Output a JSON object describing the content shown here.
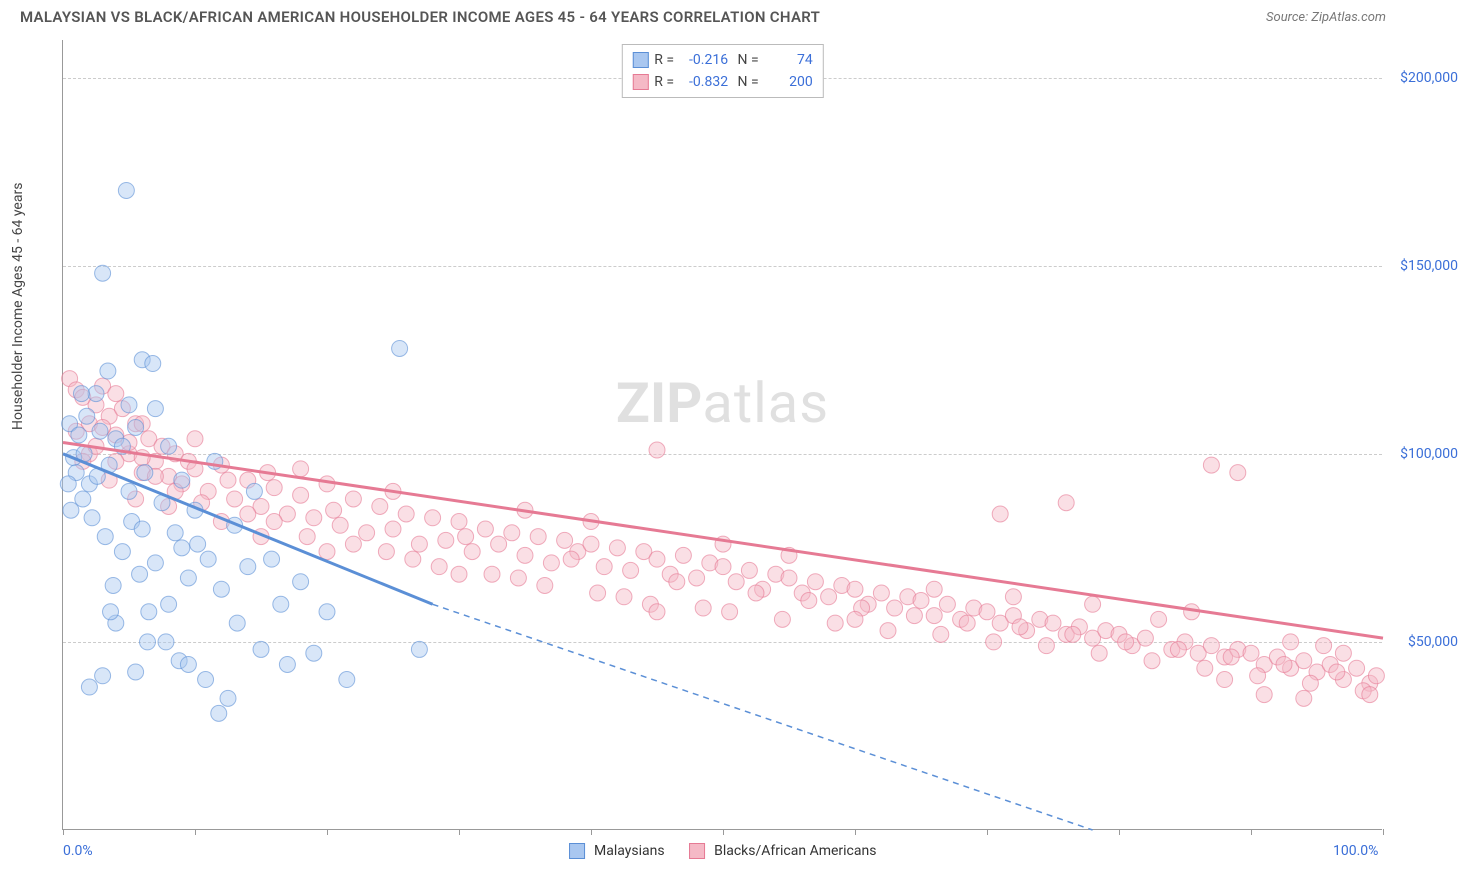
{
  "title": "MALAYSIAN VS BLACK/AFRICAN AMERICAN HOUSEHOLDER INCOME AGES 45 - 64 YEARS CORRELATION CHART",
  "source_label": "Source: ZipAtlas.com",
  "watermark": "ZIPatlas",
  "chart": {
    "type": "scatter-with-regression",
    "xlim": [
      0,
      100
    ],
    "ylim": [
      0,
      210000
    ],
    "ylabel": "Householder Income Ages 45 - 64 years",
    "x_tick_positions": [
      0,
      10,
      20,
      30,
      40,
      50,
      60,
      70,
      80,
      90,
      100
    ],
    "x_axis_labels": [
      {
        "pos": 0,
        "text": "0.0%"
      },
      {
        "pos": 100,
        "text": "100.0%"
      }
    ],
    "y_gridlines": [
      50000,
      100000,
      150000,
      200000
    ],
    "y_tick_labels": [
      {
        "val": 50000,
        "text": "$50,000"
      },
      {
        "val": 100000,
        "text": "$100,000"
      },
      {
        "val": 150000,
        "text": "$150,000"
      },
      {
        "val": 200000,
        "text": "$200,000"
      }
    ],
    "marker_radius": 8,
    "marker_opacity": 0.45,
    "grid_color": "#cccccc",
    "axis_color": "#999999",
    "background_color": "#ffffff",
    "label_fontsize": 14,
    "tick_color": "#3b6fd8"
  },
  "series": [
    {
      "name": "Malaysians",
      "color_fill": "#a9c7f0",
      "color_stroke": "#5b8fd6",
      "R": "-0.216",
      "N": "74",
      "regression": {
        "x1": 0,
        "y1": 100000,
        "x2": 28,
        "y2": 60000,
        "solid": true
      },
      "regression_ext": {
        "x1": 28,
        "y1": 60000,
        "x2": 78,
        "y2": 0
      },
      "points": [
        [
          0.5,
          108000
        ],
        [
          0.8,
          99000
        ],
        [
          1.0,
          95000
        ],
        [
          1.2,
          105000
        ],
        [
          1.5,
          88000
        ],
        [
          1.8,
          110000
        ],
        [
          2.0,
          92000
        ],
        [
          2.2,
          83000
        ],
        [
          2.5,
          116000
        ],
        [
          2.8,
          106000
        ],
        [
          3.0,
          148000
        ],
        [
          3.2,
          78000
        ],
        [
          3.5,
          97000
        ],
        [
          3.8,
          65000
        ],
        [
          4.0,
          104000
        ],
        [
          4.5,
          74000
        ],
        [
          4.8,
          170000
        ],
        [
          5.0,
          90000
        ],
        [
          5.2,
          82000
        ],
        [
          5.5,
          42000
        ],
        [
          5.8,
          68000
        ],
        [
          6.0,
          125000
        ],
        [
          6.2,
          95000
        ],
        [
          6.5,
          58000
        ],
        [
          6.8,
          124000
        ],
        [
          7.0,
          71000
        ],
        [
          7.5,
          87000
        ],
        [
          7.8,
          50000
        ],
        [
          8.0,
          102000
        ],
        [
          8.5,
          79000
        ],
        [
          8.8,
          45000
        ],
        [
          9.0,
          93000
        ],
        [
          9.5,
          67000
        ],
        [
          10.0,
          85000
        ],
        [
          10.2,
          76000
        ],
        [
          10.8,
          40000
        ],
        [
          11.0,
          72000
        ],
        [
          11.5,
          98000
        ],
        [
          12.0,
          64000
        ],
        [
          12.5,
          35000
        ],
        [
          13.0,
          81000
        ],
        [
          13.2,
          55000
        ],
        [
          14.0,
          70000
        ],
        [
          14.5,
          90000
        ],
        [
          15.0,
          48000
        ],
        [
          15.8,
          72000
        ],
        [
          16.5,
          60000
        ],
        [
          17.0,
          44000
        ],
        [
          18.0,
          66000
        ],
        [
          19.0,
          47000
        ],
        [
          20.0,
          58000
        ],
        [
          21.5,
          40000
        ],
        [
          25.5,
          128000
        ],
        [
          27.0,
          48000
        ],
        [
          2.0,
          38000
        ],
        [
          3.0,
          41000
        ],
        [
          4.0,
          55000
        ],
        [
          4.5,
          102000
        ],
        [
          5.0,
          113000
        ],
        [
          5.5,
          107000
        ],
        [
          6.0,
          80000
        ],
        [
          7.0,
          112000
        ],
        [
          8.0,
          60000
        ],
        [
          9.0,
          75000
        ],
        [
          3.4,
          122000
        ],
        [
          2.6,
          94000
        ],
        [
          1.4,
          116000
        ],
        [
          1.6,
          100000
        ],
        [
          0.4,
          92000
        ],
        [
          0.6,
          85000
        ],
        [
          11.8,
          31000
        ],
        [
          9.5,
          44000
        ],
        [
          3.6,
          58000
        ],
        [
          6.4,
          50000
        ]
      ]
    },
    {
      "name": "Blacks/African Americans",
      "color_fill": "#f5b9c6",
      "color_stroke": "#e67a94",
      "R": "-0.832",
      "N": "200",
      "regression": {
        "x1": 0,
        "y1": 103000,
        "x2": 100,
        "y2": 51000,
        "solid": true
      },
      "points": [
        [
          0.5,
          120000
        ],
        [
          1.0,
          117000
        ],
        [
          1.5,
          115000
        ],
        [
          2.0,
          108000
        ],
        [
          2.5,
          113000
        ],
        [
          3.0,
          118000
        ],
        [
          3.5,
          110000
        ],
        [
          4.0,
          105000
        ],
        [
          4.5,
          112000
        ],
        [
          5.0,
          100000
        ],
        [
          5.5,
          108000
        ],
        [
          6.0,
          95000
        ],
        [
          6.5,
          104000
        ],
        [
          7.0,
          98000
        ],
        [
          7.5,
          102000
        ],
        [
          8.0,
          94000
        ],
        [
          8.5,
          100000
        ],
        [
          9.0,
          92000
        ],
        [
          9.5,
          98000
        ],
        [
          10.0,
          96000
        ],
        [
          11.0,
          90000
        ],
        [
          12.0,
          97000
        ],
        [
          13.0,
          88000
        ],
        [
          14.0,
          93000
        ],
        [
          15.0,
          86000
        ],
        [
          15.5,
          95000
        ],
        [
          16.0,
          91000
        ],
        [
          17.0,
          84000
        ],
        [
          18.0,
          89000
        ],
        [
          19.0,
          83000
        ],
        [
          20.0,
          92000
        ],
        [
          21.0,
          81000
        ],
        [
          22.0,
          88000
        ],
        [
          23.0,
          79000
        ],
        [
          24.0,
          86000
        ],
        [
          25.0,
          80000
        ],
        [
          26.0,
          84000
        ],
        [
          27.0,
          76000
        ],
        [
          28.0,
          83000
        ],
        [
          29.0,
          77000
        ],
        [
          30.0,
          82000
        ],
        [
          31.0,
          74000
        ],
        [
          32.0,
          80000
        ],
        [
          33.0,
          76000
        ],
        [
          34.0,
          79000
        ],
        [
          35.0,
          73000
        ],
        [
          36.0,
          78000
        ],
        [
          37.0,
          71000
        ],
        [
          38.0,
          77000
        ],
        [
          39.0,
          74000
        ],
        [
          40.0,
          76000
        ],
        [
          41.0,
          70000
        ],
        [
          42.0,
          75000
        ],
        [
          43.0,
          69000
        ],
        [
          44.0,
          74000
        ],
        [
          45.0,
          72000
        ],
        [
          46.0,
          68000
        ],
        [
          47.0,
          73000
        ],
        [
          48.0,
          67000
        ],
        [
          49.0,
          71000
        ],
        [
          45.0,
          101000
        ],
        [
          50.0,
          70000
        ],
        [
          51.0,
          66000
        ],
        [
          52.0,
          69000
        ],
        [
          53.0,
          64000
        ],
        [
          54.0,
          68000
        ],
        [
          55.0,
          67000
        ],
        [
          56.0,
          63000
        ],
        [
          57.0,
          66000
        ],
        [
          58.0,
          62000
        ],
        [
          59.0,
          65000
        ],
        [
          60.0,
          64000
        ],
        [
          61.0,
          60000
        ],
        [
          62.0,
          63000
        ],
        [
          63.0,
          59000
        ],
        [
          64.0,
          62000
        ],
        [
          65.0,
          61000
        ],
        [
          66.0,
          57000
        ],
        [
          67.0,
          60000
        ],
        [
          68.0,
          56000
        ],
        [
          69.0,
          59000
        ],
        [
          70.0,
          58000
        ],
        [
          71.0,
          55000
        ],
        [
          72.0,
          57000
        ],
        [
          73.0,
          53000
        ],
        [
          74.0,
          56000
        ],
        [
          75.0,
          55000
        ],
        [
          76.0,
          52000
        ],
        [
          77.0,
          54000
        ],
        [
          78.0,
          51000
        ],
        [
          79.0,
          53000
        ],
        [
          80.0,
          52000
        ],
        [
          81.0,
          49000
        ],
        [
          82.0,
          51000
        ],
        [
          83.0,
          56000
        ],
        [
          84.0,
          48000
        ],
        [
          85.0,
          50000
        ],
        [
          86.0,
          47000
        ],
        [
          87.0,
          49000
        ],
        [
          88.0,
          46000
        ],
        [
          89.0,
          48000
        ],
        [
          87.0,
          97000
        ],
        [
          90.0,
          47000
        ],
        [
          91.0,
          44000
        ],
        [
          92.0,
          46000
        ],
        [
          93.0,
          43000
        ],
        [
          94.0,
          45000
        ],
        [
          89.0,
          95000
        ],
        [
          95.0,
          42000
        ],
        [
          96.0,
          44000
        ],
        [
          97.0,
          40000
        ],
        [
          98.0,
          43000
        ],
        [
          99.0,
          39000
        ],
        [
          99.5,
          41000
        ],
        [
          2.0,
          100000
        ],
        [
          3.0,
          107000
        ],
        [
          4.0,
          98000
        ],
        [
          5.0,
          103000
        ],
        [
          6.0,
          99000
        ],
        [
          7.0,
          94000
        ],
        [
          8.5,
          90000
        ],
        [
          10.5,
          87000
        ],
        [
          12.5,
          93000
        ],
        [
          14.0,
          84000
        ],
        [
          16.0,
          82000
        ],
        [
          18.5,
          78000
        ],
        [
          20.5,
          85000
        ],
        [
          22.0,
          76000
        ],
        [
          24.5,
          74000
        ],
        [
          26.5,
          72000
        ],
        [
          28.5,
          70000
        ],
        [
          30.5,
          78000
        ],
        [
          32.5,
          68000
        ],
        [
          34.5,
          67000
        ],
        [
          36.5,
          65000
        ],
        [
          38.5,
          72000
        ],
        [
          40.5,
          63000
        ],
        [
          42.5,
          62000
        ],
        [
          44.5,
          60000
        ],
        [
          46.5,
          66000
        ],
        [
          48.5,
          59000
        ],
        [
          50.5,
          58000
        ],
        [
          52.5,
          63000
        ],
        [
          54.5,
          56000
        ],
        [
          56.5,
          61000
        ],
        [
          58.5,
          55000
        ],
        [
          60.5,
          59000
        ],
        [
          62.5,
          53000
        ],
        [
          64.5,
          57000
        ],
        [
          66.5,
          52000
        ],
        [
          68.5,
          55000
        ],
        [
          70.5,
          50000
        ],
        [
          72.5,
          54000
        ],
        [
          74.5,
          49000
        ],
        [
          76.5,
          52000
        ],
        [
          78.5,
          47000
        ],
        [
          80.5,
          50000
        ],
        [
          82.5,
          45000
        ],
        [
          84.5,
          48000
        ],
        [
          86.5,
          43000
        ],
        [
          88.5,
          46000
        ],
        [
          90.5,
          41000
        ],
        [
          92.5,
          44000
        ],
        [
          94.5,
          39000
        ],
        [
          96.5,
          42000
        ],
        [
          98.5,
          37000
        ],
        [
          91.0,
          36000
        ],
        [
          94.0,
          35000
        ],
        [
          97.0,
          47000
        ],
        [
          99.0,
          36000
        ],
        [
          93.0,
          50000
        ],
        [
          95.5,
          49000
        ],
        [
          88.0,
          40000
        ],
        [
          85.5,
          58000
        ],
        [
          78.0,
          60000
        ],
        [
          72.0,
          62000
        ],
        [
          66.0,
          64000
        ],
        [
          60.0,
          56000
        ],
        [
          55.0,
          73000
        ],
        [
          50.0,
          76000
        ],
        [
          45.0,
          58000
        ],
        [
          40.0,
          82000
        ],
        [
          35.0,
          85000
        ],
        [
          30.0,
          68000
        ],
        [
          25.0,
          90000
        ],
        [
          20.0,
          74000
        ],
        [
          18.0,
          96000
        ],
        [
          15.0,
          78000
        ],
        [
          12.0,
          82000
        ],
        [
          10.0,
          104000
        ],
        [
          8.0,
          86000
        ],
        [
          6.0,
          108000
        ],
        [
          4.0,
          116000
        ],
        [
          2.5,
          102000
        ],
        [
          1.5,
          98000
        ],
        [
          1.0,
          106000
        ],
        [
          3.5,
          93000
        ],
        [
          5.5,
          88000
        ],
        [
          76.0,
          87000
        ],
        [
          71.0,
          84000
        ]
      ]
    }
  ],
  "legend_bottom": [
    {
      "label": "Malaysians",
      "series": 0
    },
    {
      "label": "Blacks/African Americans",
      "series": 1
    }
  ]
}
